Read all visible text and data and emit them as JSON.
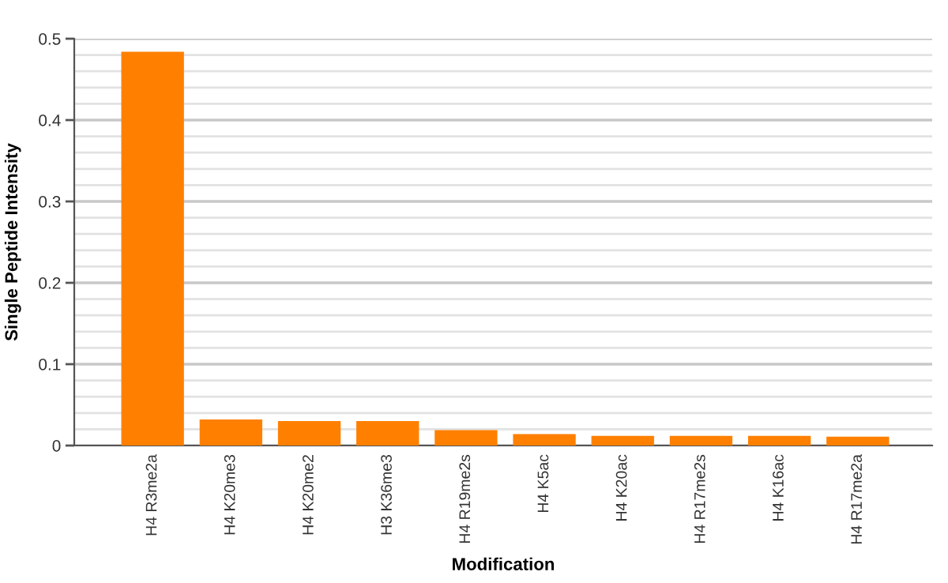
{
  "chart_data": {
    "type": "bar",
    "xlabel": "Modification",
    "ylabel": "Single Peptide Intensity",
    "categories": [
      "H4 R3me2a",
      "H4 K20me3",
      "H4 K20me2",
      "H3 K36me3",
      "H4 R19me2s",
      "H4 K5ac",
      "H4 K20ac",
      "H4 R17me2s",
      "H4 K16ac",
      "H4 R17me2a"
    ],
    "values": [
      0.484,
      0.032,
      0.03,
      0.03,
      0.019,
      0.014,
      0.012,
      0.012,
      0.012,
      0.011
    ],
    "color": "#ff8000",
    "ylim": [
      0,
      0.5
    ],
    "yticks": [
      0,
      {
        "value": 0.02,
        "label": null
      },
      {
        "value": 0.04,
        "label": null
      },
      {
        "value": 0.06,
        "label": null
      },
      {
        "value": 0.08,
        "label": null
      },
      0.1,
      {
        "value": 0.12,
        "label": null
      },
      {
        "value": 0.14,
        "label": null
      },
      {
        "value": 0.16,
        "label": null
      },
      {
        "value": 0.18,
        "label": null
      },
      0.2,
      {
        "value": 0.22,
        "label": null
      },
      {
        "value": 0.24,
        "label": null
      },
      {
        "value": 0.26,
        "label": null
      },
      {
        "value": 0.28,
        "label": null
      },
      0.3,
      {
        "value": 0.32,
        "label": null
      },
      {
        "value": 0.34,
        "label": null
      },
      {
        "value": 0.36,
        "label": null
      },
      {
        "value": 0.38,
        "label": null
      },
      0.4,
      {
        "value": 0.42,
        "label": null
      },
      {
        "value": 0.44,
        "label": null
      },
      {
        "value": 0.46,
        "label": null
      },
      {
        "value": 0.48,
        "label": null
      },
      0.5
    ],
    "grid": "y"
  }
}
